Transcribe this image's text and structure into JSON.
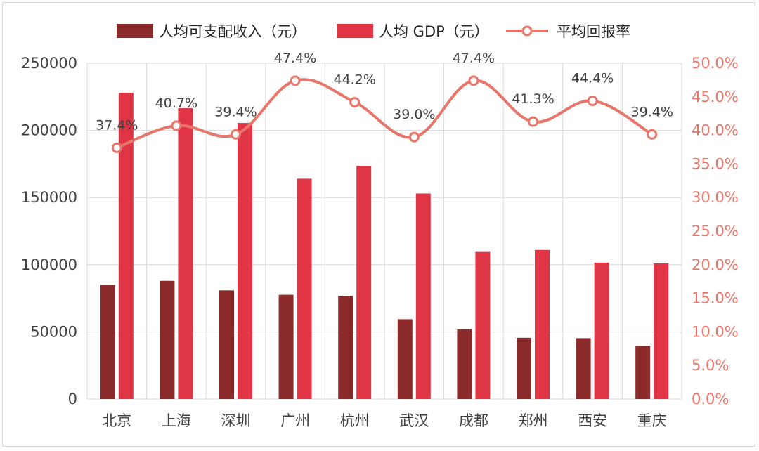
{
  "chart_data": {
    "type": "bar",
    "categories": [
      "北京",
      "上海",
      "深圳",
      "广州",
      "杭州",
      "武汉",
      "成都",
      "郑州",
      "西安",
      "重庆"
    ],
    "series": [
      {
        "name": "人均可支配收入（元）",
        "type": "bar",
        "axis": "left",
        "color": "#8b2a2a",
        "values": [
          85000,
          88000,
          80900,
          77600,
          76700,
          59400,
          51900,
          45600,
          45300,
          39500
        ]
      },
      {
        "name": "人均 GDP（元）",
        "type": "bar",
        "axis": "left",
        "color": "#e03545",
        "values": [
          228000,
          216500,
          205500,
          164000,
          173500,
          153000,
          109500,
          111000,
          101500,
          101000
        ]
      },
      {
        "name": "平均回报率",
        "type": "line",
        "axis": "right",
        "color": "#e8756a",
        "values": [
          37.4,
          40.7,
          39.4,
          47.4,
          44.2,
          39.0,
          47.4,
          41.3,
          44.4,
          39.4
        ],
        "data_labels": [
          "37.4%",
          "40.7%",
          "39.4%",
          "47.4%",
          "44.2%",
          "39.0%",
          "47.4%",
          "41.3%",
          "44.4%",
          "39.4%"
        ]
      }
    ],
    "ylim_left": [
      0,
      250000
    ],
    "yticks_left": [
      "0",
      "50000",
      "100000",
      "150000",
      "200000",
      "250000"
    ],
    "ylim_right": [
      0,
      50
    ],
    "yticks_right": [
      "0.0%",
      "5.0%",
      "10.0%",
      "15.0%",
      "20.0%",
      "25.0%",
      "30.0%",
      "35.0%",
      "40.0%",
      "45.0%",
      "50.0%"
    ],
    "grid": true,
    "legend_position": "top",
    "title": "",
    "xlabel": "",
    "ylabel": ""
  }
}
